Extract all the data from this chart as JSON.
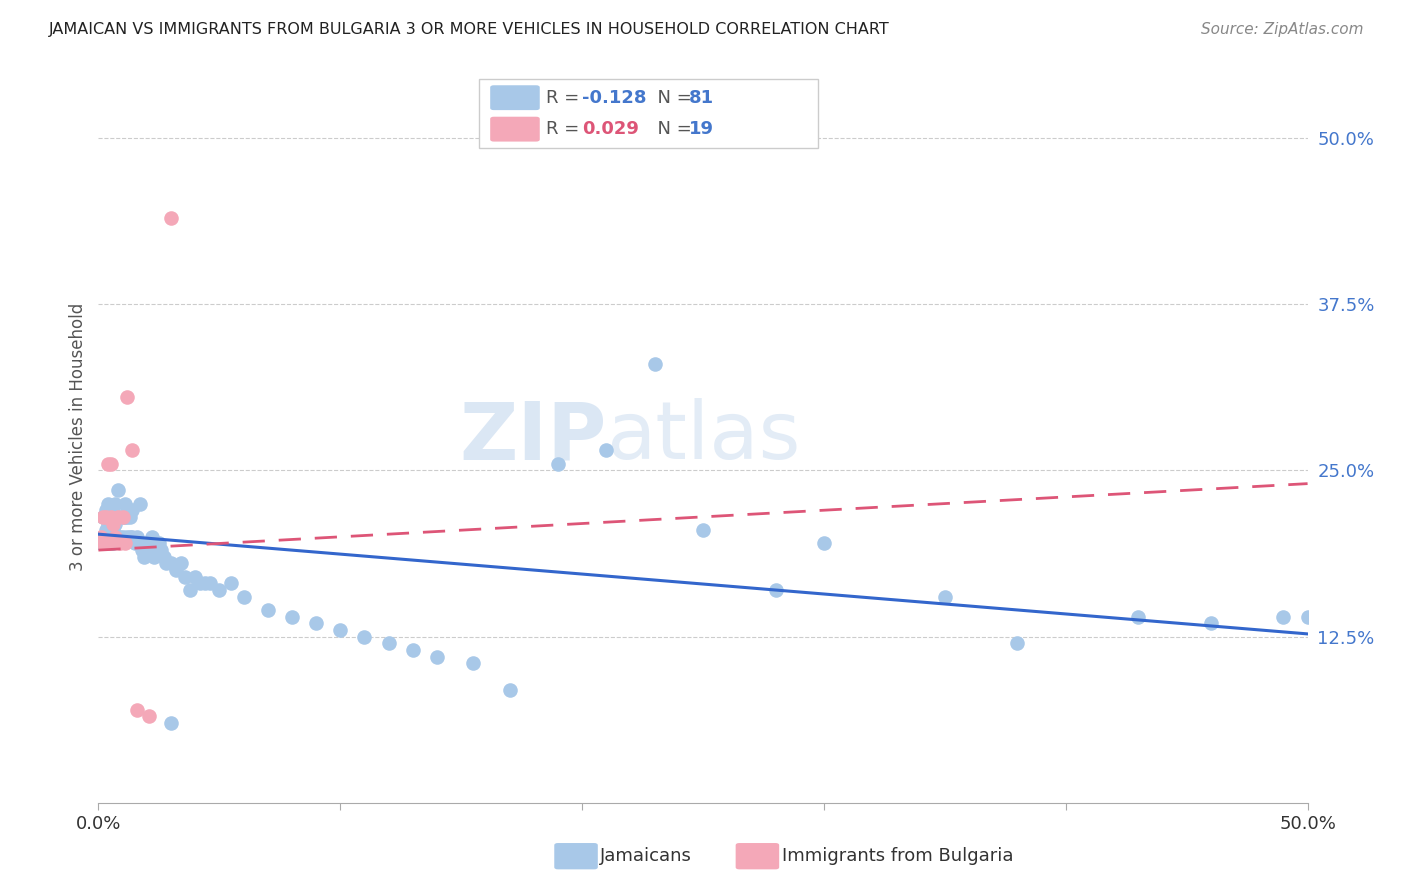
{
  "title": "JAMAICAN VS IMMIGRANTS FROM BULGARIA 3 OR MORE VEHICLES IN HOUSEHOLD CORRELATION CHART",
  "source": "Source: ZipAtlas.com",
  "ylabel": "3 or more Vehicles in Household",
  "right_ytick_labels": [
    "50.0%",
    "37.5%",
    "25.0%",
    "12.5%"
  ],
  "right_ytick_values": [
    0.5,
    0.375,
    0.25,
    0.125
  ],
  "legend_blue_R_label": "R = ",
  "legend_blue_R_val": "-0.128",
  "legend_blue_N_label": "N = ",
  "legend_blue_N_val": "81",
  "legend_pink_R_label": "R = ",
  "legend_pink_R_val": "0.029",
  "legend_pink_N_label": "N = ",
  "legend_pink_N_val": "19",
  "legend_label_blue": "Jamaicans",
  "legend_label_pink": "Immigrants from Bulgaria",
  "blue_color": "#a8c8e8",
  "pink_color": "#f4a8b8",
  "trendline_blue_color": "#3366cc",
  "trendline_pink_color": "#dd5577",
  "watermark_zip": "ZIP",
  "watermark_atlas": "atlas",
  "xlim": [
    0.0,
    0.5
  ],
  "ylim": [
    0.0,
    0.55
  ],
  "blue_x": [
    0.001,
    0.002,
    0.002,
    0.003,
    0.003,
    0.003,
    0.004,
    0.004,
    0.004,
    0.005,
    0.005,
    0.005,
    0.006,
    0.006,
    0.007,
    0.007,
    0.007,
    0.008,
    0.008,
    0.008,
    0.009,
    0.009,
    0.01,
    0.01,
    0.011,
    0.011,
    0.012,
    0.012,
    0.013,
    0.013,
    0.014,
    0.014,
    0.015,
    0.016,
    0.017,
    0.018,
    0.019,
    0.02,
    0.021,
    0.022,
    0.023,
    0.024,
    0.025,
    0.026,
    0.027,
    0.028,
    0.03,
    0.032,
    0.034,
    0.036,
    0.038,
    0.04,
    0.042,
    0.044,
    0.046,
    0.05,
    0.055,
    0.06,
    0.07,
    0.08,
    0.09,
    0.1,
    0.11,
    0.12,
    0.13,
    0.14,
    0.155,
    0.17,
    0.19,
    0.21,
    0.23,
    0.25,
    0.28,
    0.3,
    0.35,
    0.38,
    0.43,
    0.46,
    0.49,
    0.5,
    0.03
  ],
  "blue_y": [
    0.195,
    0.2,
    0.215,
    0.195,
    0.205,
    0.22,
    0.2,
    0.21,
    0.225,
    0.195,
    0.205,
    0.215,
    0.195,
    0.205,
    0.2,
    0.21,
    0.225,
    0.2,
    0.215,
    0.235,
    0.2,
    0.215,
    0.2,
    0.215,
    0.215,
    0.225,
    0.215,
    0.2,
    0.2,
    0.215,
    0.22,
    0.2,
    0.195,
    0.2,
    0.225,
    0.19,
    0.185,
    0.19,
    0.195,
    0.2,
    0.185,
    0.19,
    0.195,
    0.19,
    0.185,
    0.18,
    0.18,
    0.175,
    0.18,
    0.17,
    0.16,
    0.17,
    0.165,
    0.165,
    0.165,
    0.16,
    0.165,
    0.155,
    0.145,
    0.14,
    0.135,
    0.13,
    0.125,
    0.12,
    0.115,
    0.11,
    0.105,
    0.085,
    0.255,
    0.265,
    0.33,
    0.205,
    0.16,
    0.195,
    0.155,
    0.12,
    0.14,
    0.135,
    0.14,
    0.14,
    0.06
  ],
  "pink_x": [
    0.001,
    0.002,
    0.002,
    0.003,
    0.004,
    0.004,
    0.005,
    0.005,
    0.006,
    0.007,
    0.008,
    0.009,
    0.01,
    0.011,
    0.012,
    0.014,
    0.016,
    0.021,
    0.03
  ],
  "pink_y": [
    0.2,
    0.195,
    0.215,
    0.215,
    0.255,
    0.195,
    0.255,
    0.215,
    0.21,
    0.2,
    0.215,
    0.195,
    0.215,
    0.195,
    0.305,
    0.265,
    0.07,
    0.065,
    0.44
  ],
  "trendline_blue_x0": 0.0,
  "trendline_blue_y0": 0.202,
  "trendline_blue_x1": 0.5,
  "trendline_blue_y1": 0.127,
  "trendline_pink_x0": 0.0,
  "trendline_pink_y0": 0.19,
  "trendline_pink_x1": 0.5,
  "trendline_pink_y1": 0.24
}
